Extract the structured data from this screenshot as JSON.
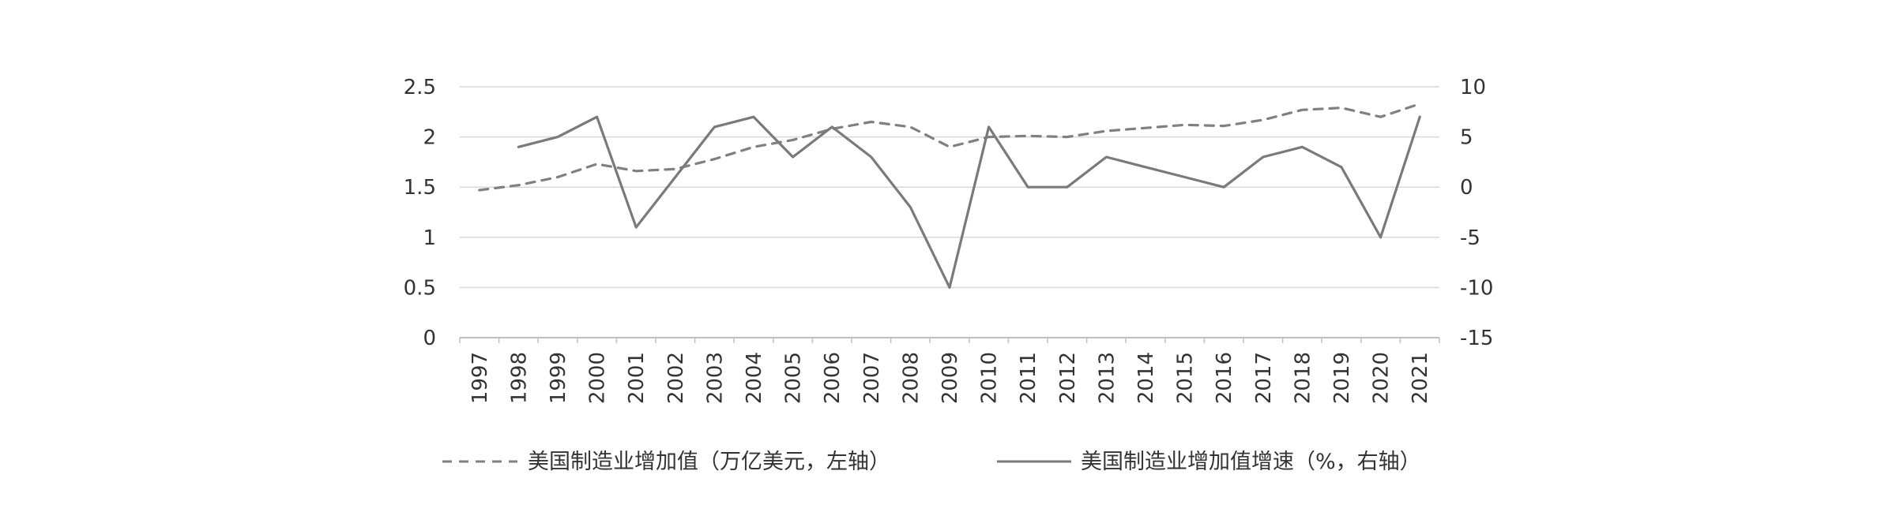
{
  "chart_data": {
    "type": "line",
    "title": "",
    "categories": [
      "1997",
      "1998",
      "1999",
      "2000",
      "2001",
      "2002",
      "2003",
      "2004",
      "2005",
      "2006",
      "2007",
      "2008",
      "2009",
      "2010",
      "2011",
      "2012",
      "2013",
      "2014",
      "2015",
      "2016",
      "2017",
      "2018",
      "2019",
      "2020",
      "2021"
    ],
    "left_axis": {
      "ylim": [
        0,
        2.5
      ],
      "ticks": [
        "0",
        "0.5",
        "1",
        "1.5",
        "2",
        "2.5"
      ]
    },
    "right_axis": {
      "ylim": [
        -15,
        10
      ],
      "ticks": [
        "-15",
        "-10",
        "-5",
        "0",
        "5",
        "10"
      ]
    },
    "grid": true,
    "legend_position": "bottom",
    "series": [
      {
        "name": "美国制造业增加值（万亿美元，左轴）",
        "axis": "left",
        "style": "dashed",
        "color": "#808080",
        "values": [
          1.47,
          1.52,
          1.6,
          1.73,
          1.66,
          1.68,
          1.78,
          1.9,
          1.97,
          2.08,
          2.15,
          2.1,
          1.9,
          2.0,
          2.01,
          2.0,
          2.06,
          2.09,
          2.12,
          2.11,
          2.17,
          2.27,
          2.29,
          2.2,
          2.33
        ]
      },
      {
        "name": "美国制造业增加值增速（%，右轴）",
        "axis": "right",
        "style": "solid",
        "color": "#7a7a7a",
        "values": [
          null,
          4,
          5,
          7,
          -4,
          1,
          6,
          7,
          3,
          6,
          3,
          -2,
          -10,
          6,
          0,
          0,
          3,
          2,
          1,
          0,
          3,
          4,
          2,
          -5,
          7
        ]
      }
    ]
  }
}
